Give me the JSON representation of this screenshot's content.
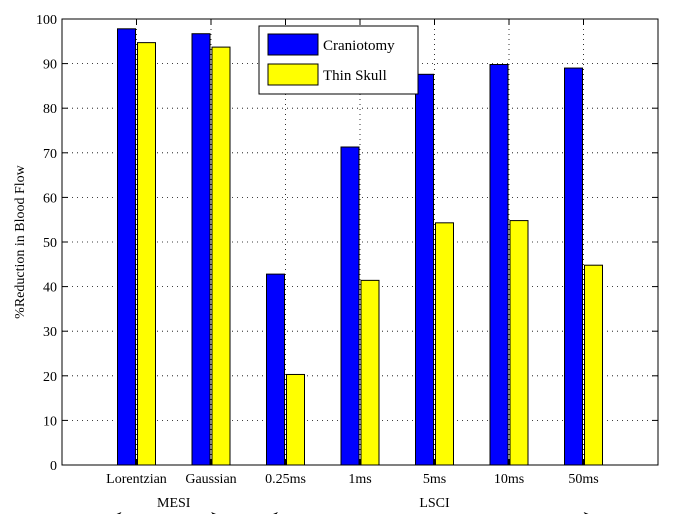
{
  "chart_data": {
    "type": "bar",
    "ylabel": "%Reduction in Blood Flow",
    "ylim": [
      0,
      100
    ],
    "yticks": [
      0,
      10,
      20,
      30,
      40,
      50,
      60,
      70,
      80,
      90,
      100
    ],
    "grid": "dotted",
    "legend_position": "top-center",
    "categories": [
      "Lorentzian",
      "Gaussian",
      "0.25ms",
      "1ms",
      "5ms",
      "10ms",
      "50ms"
    ],
    "series": [
      {
        "name": "Craniotomy",
        "color": "#0000ff",
        "values": [
          97.8,
          96.7,
          42.8,
          71.3,
          87.6,
          89.8,
          89.0
        ]
      },
      {
        "name": "Thin Skull",
        "color": "#ffff00",
        "values": [
          94.7,
          93.7,
          20.3,
          41.4,
          54.3,
          54.8,
          44.8
        ]
      }
    ],
    "group_labels": [
      {
        "label": "MESI",
        "from": 0,
        "to": 1
      },
      {
        "label": "LSCI",
        "from": 2,
        "to": 6
      }
    ]
  }
}
